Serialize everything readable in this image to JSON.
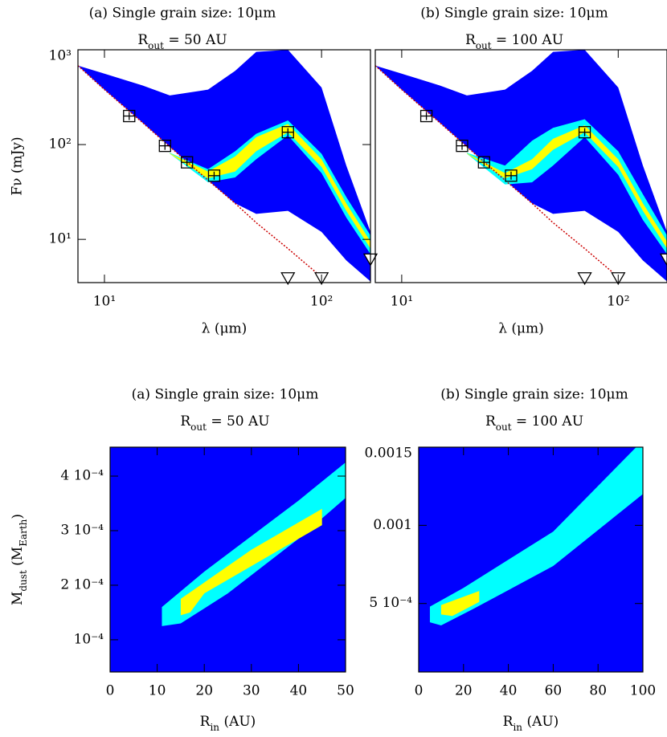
{
  "chart_data": [
    {
      "type": "sed",
      "title": "(a) Single grain size: 10μm",
      "subtitle_parts": [
        "R",
        "out",
        " = 50 AU"
      ],
      "ylabel": "Fν (mJy)",
      "xlabel": "λ (μm)",
      "xlim": [
        7.55,
        168
      ],
      "ylim": [
        3.5,
        1000
      ],
      "log": true,
      "xticks": [
        {
          "value": 10,
          "label": "10¹"
        },
        {
          "value": 100,
          "label": "10²"
        }
      ],
      "yticks": [
        {
          "value": 10,
          "label": "10¹"
        },
        {
          "value": 100,
          "label": "10²"
        },
        {
          "value": 1000,
          "label": "10³"
        }
      ],
      "x": [
        7.55,
        10,
        15,
        20,
        30,
        40,
        50,
        70,
        100,
        130,
        168
      ],
      "bands": [
        {
          "color": "#0000ff",
          "lower": [
            680,
            380,
            170,
            95,
            42,
            24,
            18.6,
            20,
            12,
            6,
            3.6
          ],
          "upper": [
            680,
            560,
            420,
            330,
            380,
            600,
            950,
            1000,
            400,
            60,
            12
          ]
        },
        {
          "color": "#00ffff",
          "lower": [
            null,
            null,
            null,
            80,
            40,
            45,
            70,
            125,
            50,
            17,
            7
          ],
          "upper": [
            null,
            null,
            null,
            82,
            55,
            85,
            130,
            180,
            80,
            28,
            11
          ]
        },
        {
          "color": "#ffff00",
          "lower": [
            null,
            null,
            null,
            80,
            44,
            52,
            85,
            135,
            58,
            20,
            8
          ],
          "upper": [
            null,
            null,
            null,
            81,
            52,
            75,
            120,
            165,
            70,
            24,
            9.5
          ]
        }
      ],
      "photosphere": {
        "color": "#cc0000",
        "values": [
          680,
          380,
          170,
          95,
          42,
          24,
          15,
          8,
          4,
          null,
          null
        ]
      },
      "points": {
        "x": [
          13,
          19,
          24,
          32,
          70
        ],
        "y": [
          200,
          97,
          65,
          47,
          135
        ]
      },
      "upper_limits": {
        "x": [
          70,
          100,
          168
        ],
        "y": [
          3.8,
          3.8,
          6
        ]
      }
    },
    {
      "type": "sed",
      "title": "(b) Single grain size: 10μm",
      "subtitle_parts": [
        "R",
        "out",
        " = 100 AU"
      ],
      "xlabel": "λ (μm)",
      "xlim": [
        7.55,
        168
      ],
      "ylim": [
        3.5,
        1000
      ],
      "log": true,
      "xticks": [
        {
          "value": 10,
          "label": "10¹"
        },
        {
          "value": 100,
          "label": "10²"
        }
      ],
      "x": [
        7.55,
        10,
        15,
        20,
        30,
        40,
        50,
        70,
        100,
        130,
        168
      ],
      "bands": [
        {
          "color": "#0000ff",
          "lower": [
            680,
            380,
            170,
            95,
            42,
            24,
            18.6,
            20,
            12,
            6,
            3.6
          ],
          "upper": [
            680,
            560,
            420,
            330,
            380,
            600,
            950,
            1000,
            400,
            60,
            12
          ]
        },
        {
          "color": "#00ffff",
          "lower": [
            null,
            null,
            null,
            80,
            38,
            40,
            60,
            120,
            48,
            16,
            7
          ],
          "upper": [
            null,
            null,
            null,
            82,
            60,
            110,
            150,
            185,
            85,
            30,
            11
          ]
        },
        {
          "color": "#ffff00",
          "lower": [
            null,
            null,
            null,
            80,
            44,
            55,
            88,
            135,
            58,
            20,
            8
          ],
          "upper": [
            null,
            null,
            null,
            81,
            50,
            70,
            115,
            160,
            70,
            24,
            9.5
          ]
        }
      ],
      "photosphere": {
        "color": "#cc0000",
        "values": [
          680,
          380,
          170,
          95,
          42,
          24,
          15,
          8,
          4,
          null,
          null
        ]
      },
      "points": {
        "x": [
          13,
          19,
          24,
          32,
          70
        ],
        "y": [
          200,
          97,
          65,
          47,
          135
        ]
      },
      "upper_limits": {
        "x": [
          70,
          100,
          168
        ],
        "y": [
          3.8,
          3.8,
          6
        ]
      }
    },
    {
      "type": "map",
      "title": "(a) Single grain size: 10μm",
      "subtitle_parts": [
        "R",
        "out",
        " = 50 AU"
      ],
      "ylabel_parts": [
        "M",
        "dust",
        " (M",
        "Earth",
        ")"
      ],
      "xlabel_parts": [
        "R",
        "in",
        " (AU)"
      ],
      "xlim": [
        0,
        50
      ],
      "ylim": [
        4.1e-05,
        0.000453
      ],
      "xticks": [
        0,
        10,
        20,
        30,
        40,
        50
      ],
      "yticks": [
        {
          "value": 0.0001,
          "label": "10⁻⁴"
        },
        {
          "value": 0.0002,
          "label": "2 10⁻⁴"
        },
        {
          "value": 0.0003,
          "label": "3 10⁻⁴"
        },
        {
          "value": 0.0004,
          "label": "4 10⁻⁴"
        }
      ],
      "background_color": "#0000ff",
      "regions": [
        {
          "color": "#00ffff",
          "x": [
            11,
            11,
            20,
            40,
            50,
            50,
            40,
            25,
            15
          ],
          "y": [
            0.000125,
            0.00016,
            0.000225,
            0.000355,
            0.000425,
            0.00036,
            0.000285,
            0.000185,
            0.00013
          ]
        },
        {
          "color": "#ffff00",
          "x": [
            15,
            15,
            30,
            45,
            45,
            35,
            20,
            17
          ],
          "y": [
            0.000145,
            0.000175,
            0.000265,
            0.00034,
            0.00031,
            0.00026,
            0.000185,
            0.00015
          ]
        }
      ]
    },
    {
      "type": "map",
      "title": "(b) Single grain size: 10μm",
      "subtitle_parts": [
        "R",
        "out",
        " = 100 AU"
      ],
      "xlabel_parts": [
        "R",
        "in",
        " (AU)"
      ],
      "xlim": [
        0,
        100
      ],
      "ylim": [
        6.2e-05,
        0.0015
      ],
      "xticks": [
        0,
        20,
        40,
        60,
        80,
        100
      ],
      "yticks": [
        {
          "value": 0.0005,
          "label": "5 10⁻⁴"
        },
        0.001,
        0.0015
      ],
      "background_color": "#0000ff",
      "regions": [
        {
          "color": "#00ffff",
          "x": [
            5,
            5,
            20,
            60,
            97,
            100,
            100,
            60,
            25,
            10
          ],
          "y": [
            0.00038,
            0.00048,
            0.0006,
            0.00096,
            0.0015,
            0.0015,
            0.0012,
            0.00074,
            0.00047,
            0.00036
          ]
        },
        {
          "color": "#ffff00",
          "x": [
            10,
            10,
            27,
            27,
            15
          ],
          "y": [
            0.00043,
            0.00049,
            0.00058,
            0.00051,
            0.00042
          ]
        }
      ]
    }
  ]
}
